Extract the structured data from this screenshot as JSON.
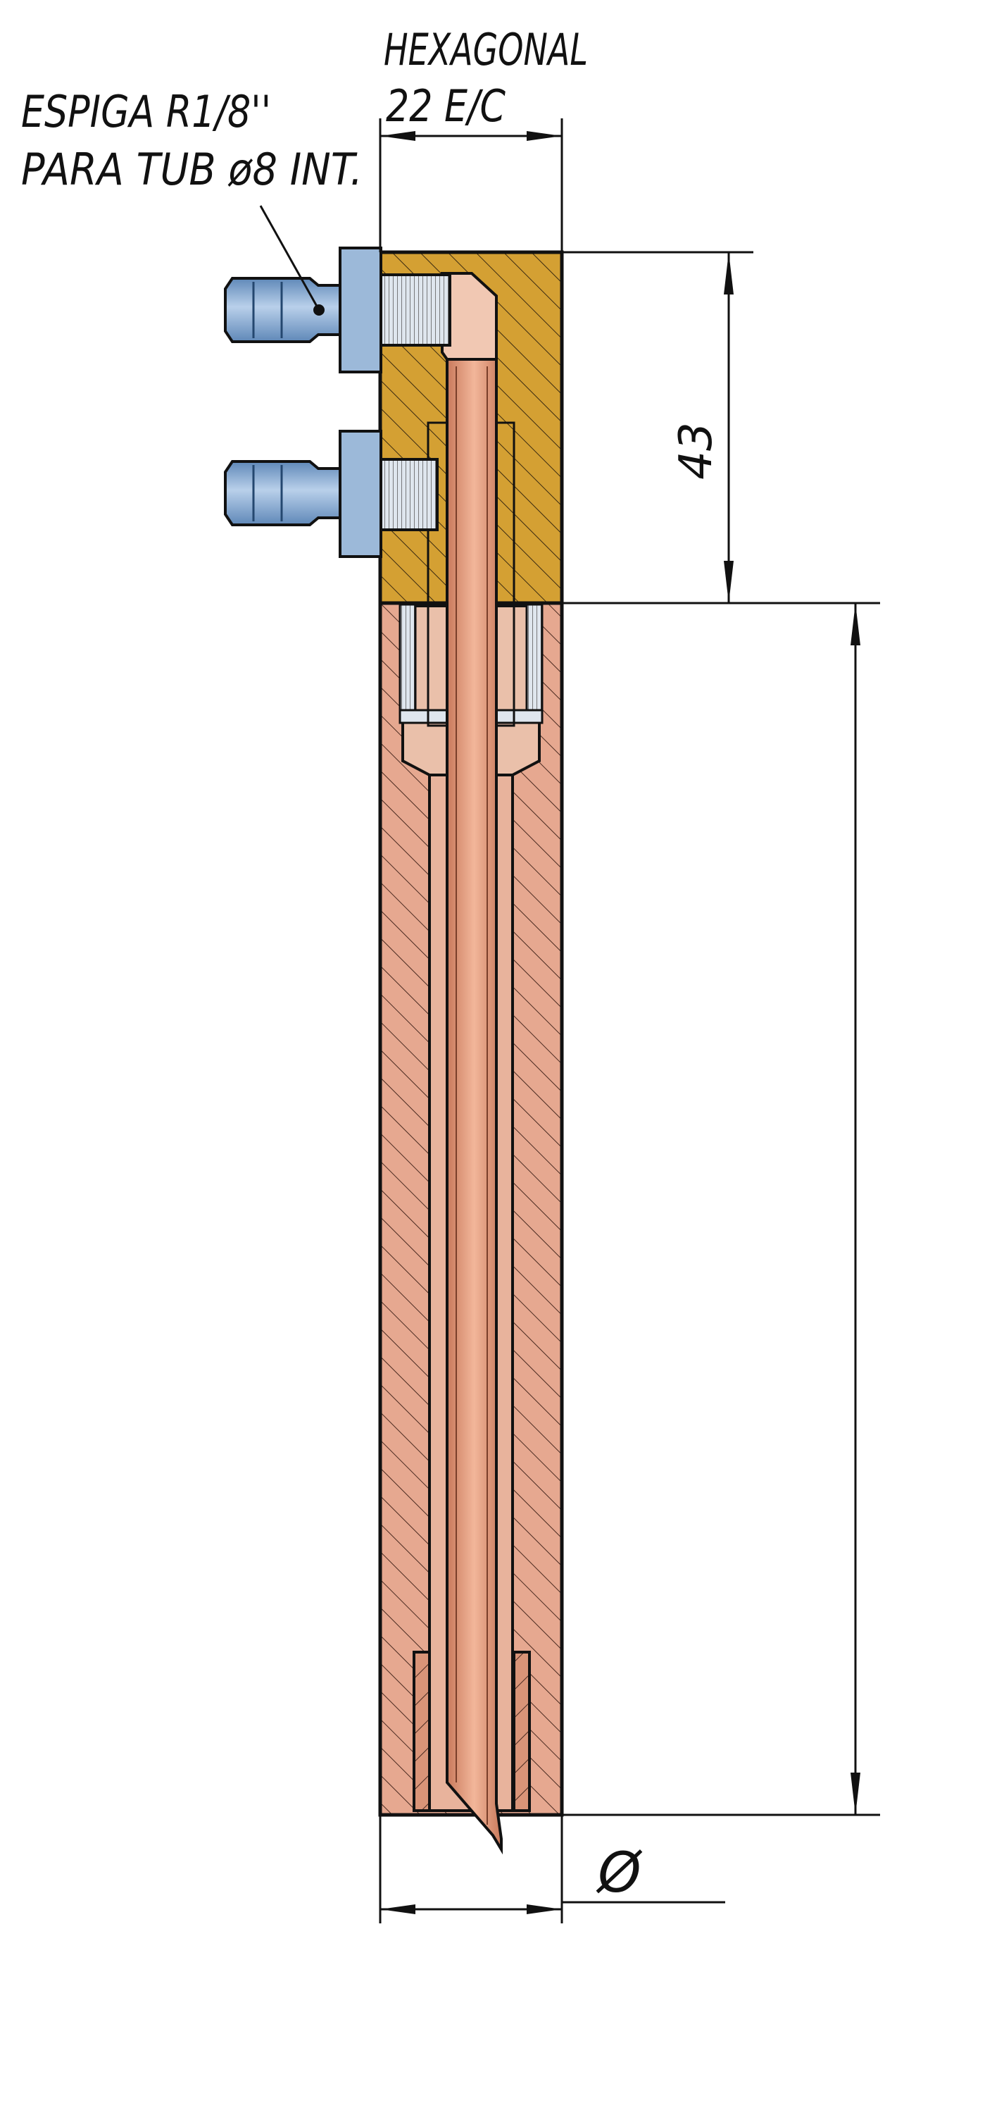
{
  "labels": {
    "hexagonal_line1": "HEXAGONAL",
    "hexagonal_line2": "22 E/C",
    "espiga_line1": "ESPIGA R1/8''",
    "espiga_line2": "PARA TUB ø8 INT.",
    "dim_43": "43",
    "dim_phi": "Ø"
  },
  "colors": {
    "brass": "#d4a033",
    "copper_body": "#e6a890",
    "copper_tube": "#e29a7c",
    "fitting_blue": "#8fb2d8",
    "line": "#111111"
  },
  "icons": {
    "dim_arrow": "dimension-arrowhead"
  }
}
